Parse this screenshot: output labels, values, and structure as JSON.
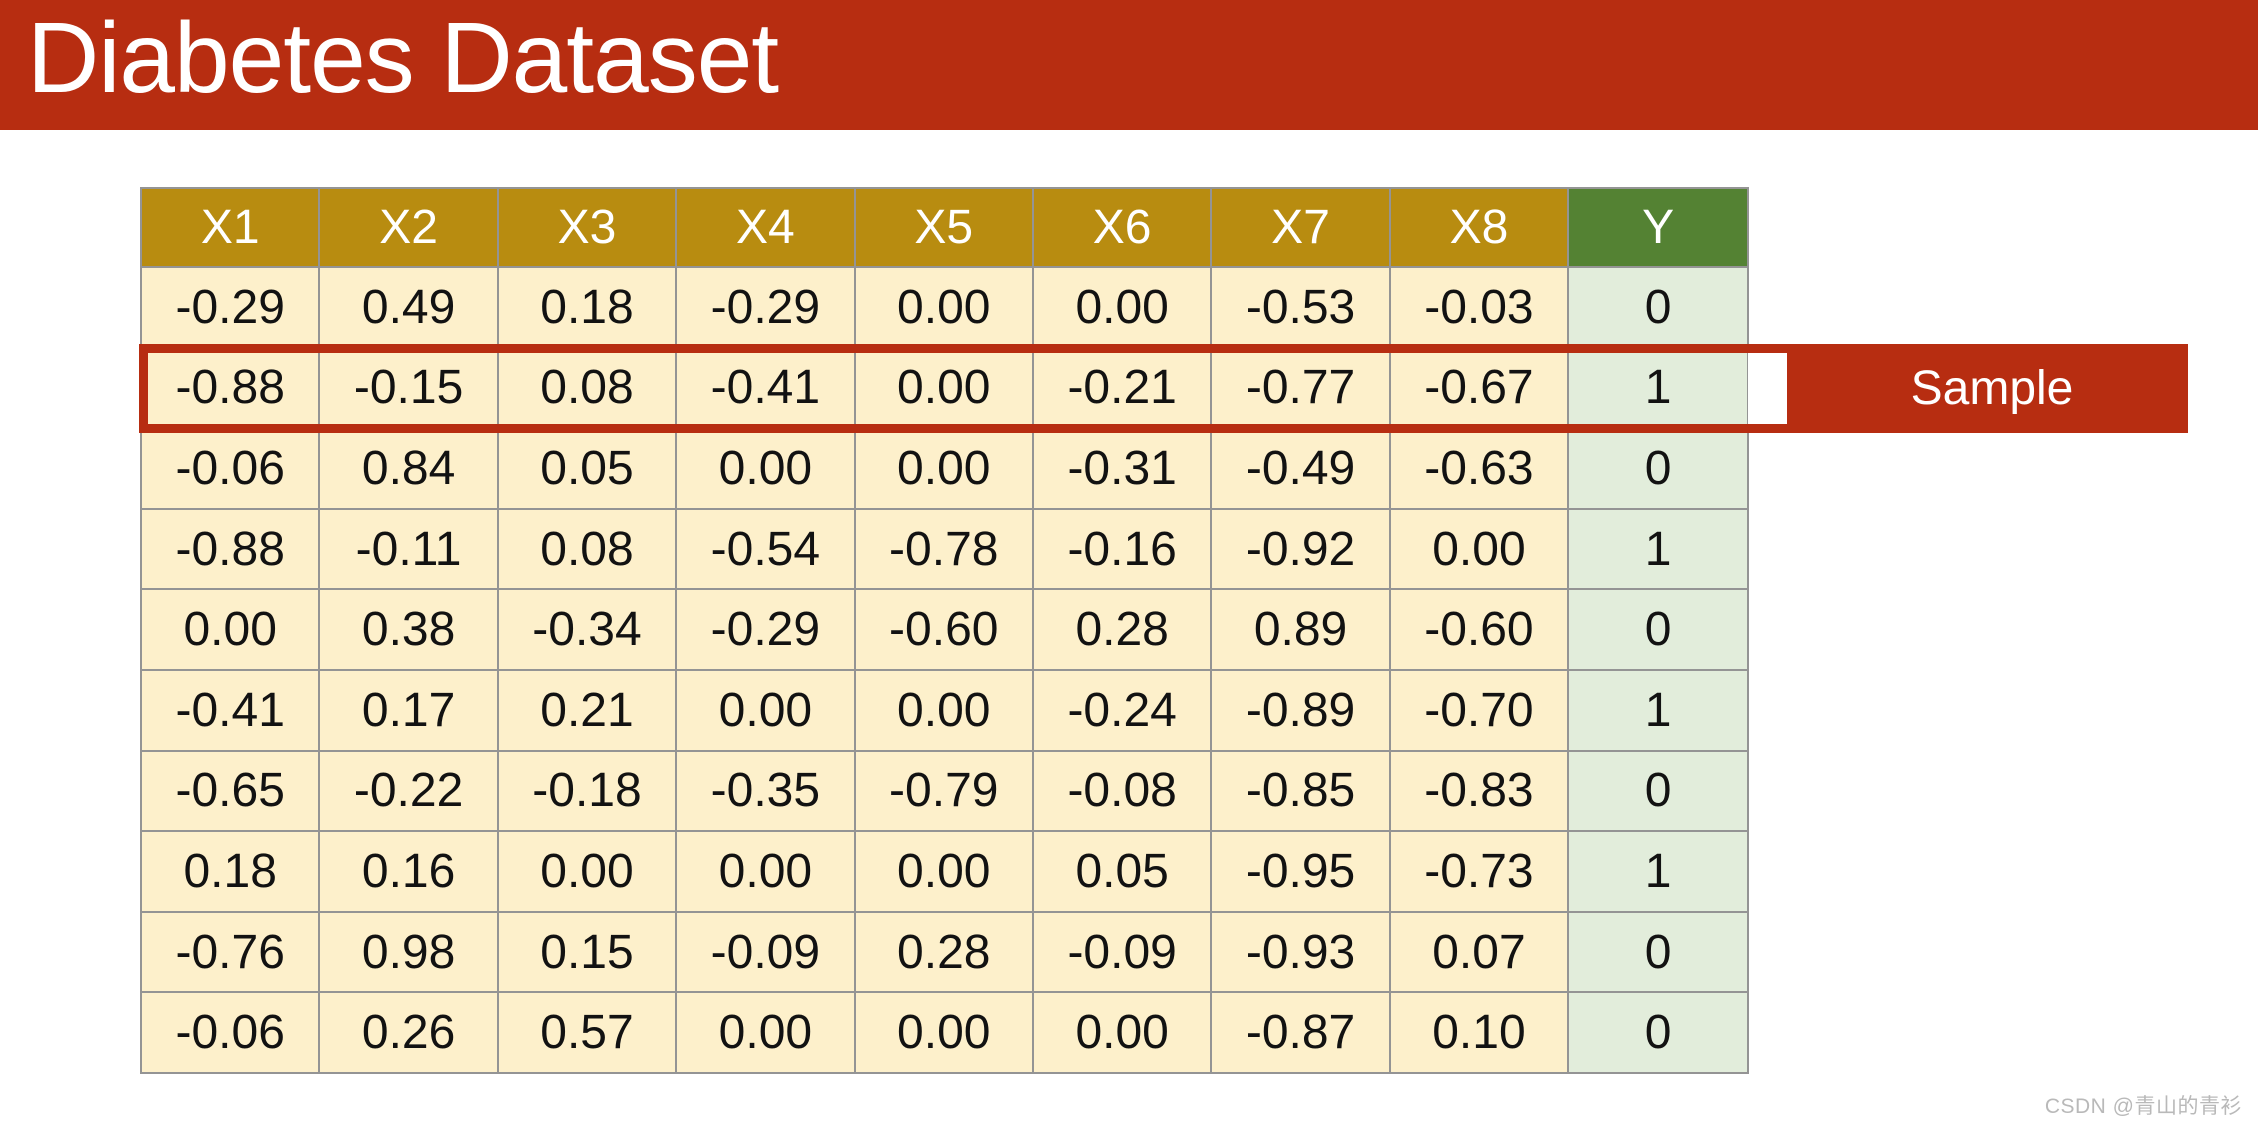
{
  "title": "Diabetes Dataset",
  "sample_label": "Sample",
  "watermark": "CSDN @青山的青衫",
  "colors": {
    "banner_red": "#B72D11",
    "header_gold": "#B88C10",
    "header_green": "#548233",
    "cell_cream": "#FDF0CB",
    "cell_light_green": "#E2EDDB",
    "highlight_red": "#B72D11",
    "grid_line": "#949494"
  },
  "table": {
    "columns": [
      "X1",
      "X2",
      "X3",
      "X4",
      "X5",
      "X6",
      "X7",
      "X8",
      "Y"
    ],
    "rows": [
      [
        "-0.29",
        "0.49",
        "0.18",
        "-0.29",
        "0.00",
        "0.00",
        "-0.53",
        "-0.03",
        "0"
      ],
      [
        "-0.88",
        "-0.15",
        "0.08",
        "-0.41",
        "0.00",
        "-0.21",
        "-0.77",
        "-0.67",
        "1"
      ],
      [
        "-0.06",
        "0.84",
        "0.05",
        "0.00",
        "0.00",
        "-0.31",
        "-0.49",
        "-0.63",
        "0"
      ],
      [
        "-0.88",
        "-0.11",
        "0.08",
        "-0.54",
        "-0.78",
        "-0.16",
        "-0.92",
        "0.00",
        "1"
      ],
      [
        "0.00",
        "0.38",
        "-0.34",
        "-0.29",
        "-0.60",
        "0.28",
        "0.89",
        "-0.60",
        "0"
      ],
      [
        "-0.41",
        "0.17",
        "0.21",
        "0.00",
        "0.00",
        "-0.24",
        "-0.89",
        "-0.70",
        "1"
      ],
      [
        "-0.65",
        "-0.22",
        "-0.18",
        "-0.35",
        "-0.79",
        "-0.08",
        "-0.85",
        "-0.83",
        "0"
      ],
      [
        "0.18",
        "0.16",
        "0.00",
        "0.00",
        "0.00",
        "0.05",
        "-0.95",
        "-0.73",
        "1"
      ],
      [
        "-0.76",
        "0.98",
        "0.15",
        "-0.09",
        "0.28",
        "-0.09",
        "-0.93",
        "0.07",
        "0"
      ],
      [
        "-0.06",
        "0.26",
        "0.57",
        "0.00",
        "0.00",
        "0.00",
        "-0.87",
        "0.10",
        "0"
      ]
    ],
    "highlighted_row_index": 1
  }
}
